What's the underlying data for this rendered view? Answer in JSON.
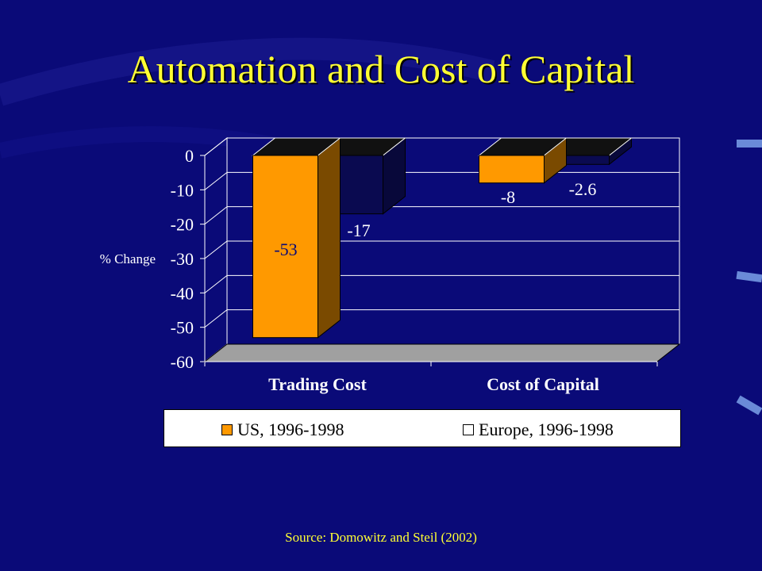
{
  "slide": {
    "title": "Automation and Cost of Capital",
    "source": "Source: Domowitz and Steil (2002)"
  },
  "colors": {
    "background": "#0a0a78",
    "title": "#ffff33",
    "us_bar": "#ff9900",
    "europe_bar": "#0a0a50",
    "plot_bg": "#0a0a78"
  },
  "chart_data": {
    "type": "bar",
    "categories": [
      "Trading Cost",
      "Cost of Capital"
    ],
    "series": [
      {
        "name": "US, 1996-1998",
        "values": [
          -53,
          -8
        ],
        "labels": [
          "-53",
          "-8"
        ]
      },
      {
        "name": "Europe, 1996-1998",
        "values": [
          -17,
          -2.6
        ],
        "labels": [
          "-17",
          "-2.6"
        ]
      }
    ],
    "ylabel": "% Change",
    "ylim": [
      -60,
      0
    ],
    "yticks": [
      "0",
      "-10",
      "-20",
      "-30",
      "-40",
      "-50",
      "-60"
    ],
    "grid": true,
    "legend_position": "bottom",
    "three_d": true
  }
}
